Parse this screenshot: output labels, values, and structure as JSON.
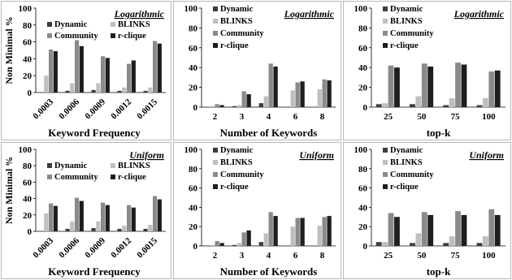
{
  "colors": {
    "Dynamic": "#3c3c3c",
    "BLINKS": "#bfbfbf",
    "Community": "#8a8a8a",
    "r-clique": "#1e1e1e"
  },
  "chart_data": [
    {
      "type": "bar",
      "title": "Logarithmic",
      "xlabel": "Keyword Frequency",
      "ylabel": "Non Minimal %",
      "ylim": [
        0,
        100
      ],
      "yticks": [
        0,
        20,
        40,
        60,
        80,
        100
      ],
      "legend_layout": "grid",
      "x_tick_rotation": "diagonal",
      "categories": [
        "0.0003",
        "0.0006",
        "0.0009",
        "0.0012",
        "0.0015"
      ],
      "series": [
        {
          "name": "Dynamic",
          "values": [
            0,
            2,
            3,
            2,
            2
          ]
        },
        {
          "name": "BLINKS",
          "values": [
            20,
            11,
            11,
            6,
            6
          ]
        },
        {
          "name": "Community",
          "values": [
            51,
            62,
            43,
            34,
            61
          ]
        },
        {
          "name": "r-clique",
          "values": [
            49,
            55,
            41,
            38,
            58
          ]
        }
      ]
    },
    {
      "type": "bar",
      "title": "Logarithmic",
      "xlabel": "Number of Keywords",
      "ylabel": "",
      "ylim": [
        0,
        100
      ],
      "yticks": [
        0,
        20,
        40,
        60,
        80,
        100
      ],
      "legend_layout": "column",
      "x_tick_rotation": "none",
      "categories": [
        "2",
        "3",
        "4",
        "6",
        "8"
      ],
      "series": [
        {
          "name": "Dynamic",
          "values": [
            0,
            1,
            4,
            0,
            0
          ]
        },
        {
          "name": "BLINKS",
          "values": [
            1,
            2,
            11,
            17,
            18
          ]
        },
        {
          "name": "Community",
          "values": [
            3,
            16,
            44,
            25,
            28
          ]
        },
        {
          "name": "r-clique",
          "values": [
            2,
            13,
            41,
            26,
            27
          ]
        }
      ]
    },
    {
      "type": "bar",
      "title": "Logarithmic",
      "xlabel": "top-k",
      "ylabel": "",
      "ylim": [
        0,
        100
      ],
      "yticks": [
        0,
        20,
        40,
        60,
        80,
        100
      ],
      "legend_layout": "column",
      "x_tick_rotation": "none",
      "categories": [
        "25",
        "50",
        "75",
        "100"
      ],
      "series": [
        {
          "name": "Dynamic",
          "values": [
            3,
            3,
            2,
            2
          ]
        },
        {
          "name": "BLINKS",
          "values": [
            4,
            11,
            9,
            9
          ]
        },
        {
          "name": "Community",
          "values": [
            42,
            44,
            45,
            36
          ]
        },
        {
          "name": "r-clique",
          "values": [
            40,
            41,
            43,
            37
          ]
        }
      ]
    },
    {
      "type": "bar",
      "title": "Uniform",
      "xlabel": "Keyword Frequency",
      "ylabel": "Non Minimal %",
      "ylim": [
        0,
        100
      ],
      "yticks": [
        0,
        20,
        40,
        60,
        80,
        100
      ],
      "legend_layout": "grid",
      "x_tick_rotation": "diagonal",
      "categories": [
        "0.0003",
        "0.0006",
        "0.0009",
        "0.0012",
        "0.0015"
      ],
      "series": [
        {
          "name": "Dynamic",
          "values": [
            0,
            3,
            4,
            3,
            3
          ]
        },
        {
          "name": "BLINKS",
          "values": [
            22,
            12,
            12,
            7,
            8
          ]
        },
        {
          "name": "Community",
          "values": [
            34,
            41,
            35,
            32,
            43
          ]
        },
        {
          "name": "r-clique",
          "values": [
            31,
            37,
            32,
            29,
            39
          ]
        }
      ]
    },
    {
      "type": "bar",
      "title": "Uniform",
      "xlabel": "Number of Keywords",
      "ylabel": "",
      "ylim": [
        0,
        100
      ],
      "yticks": [
        0,
        20,
        40,
        60,
        80,
        100
      ],
      "legend_layout": "column",
      "x_tick_rotation": "none",
      "categories": [
        "2",
        "3",
        "4",
        "6",
        "8"
      ],
      "series": [
        {
          "name": "Dynamic",
          "values": [
            0,
            1,
            4,
            0,
            0
          ]
        },
        {
          "name": "BLINKS",
          "values": [
            1,
            3,
            13,
            20,
            21
          ]
        },
        {
          "name": "Community",
          "values": [
            5,
            14,
            35,
            29,
            30
          ]
        },
        {
          "name": "r-clique",
          "values": [
            3,
            16,
            31,
            29,
            31
          ]
        }
      ]
    },
    {
      "type": "bar",
      "title": "Uniform",
      "xlabel": "top-k",
      "ylabel": "",
      "ylim": [
        0,
        100
      ],
      "yticks": [
        0,
        20,
        40,
        60,
        80,
        100
      ],
      "legend_layout": "column",
      "x_tick_rotation": "none",
      "categories": [
        "25",
        "50",
        "75",
        "100"
      ],
      "series": [
        {
          "name": "Dynamic",
          "values": [
            4,
            3,
            3,
            3
          ]
        },
        {
          "name": "BLINKS",
          "values": [
            4,
            13,
            10,
            10
          ]
        },
        {
          "name": "Community",
          "values": [
            34,
            35,
            36,
            38
          ]
        },
        {
          "name": "r-clique",
          "values": [
            30,
            32,
            32,
            32
          ]
        }
      ]
    }
  ]
}
